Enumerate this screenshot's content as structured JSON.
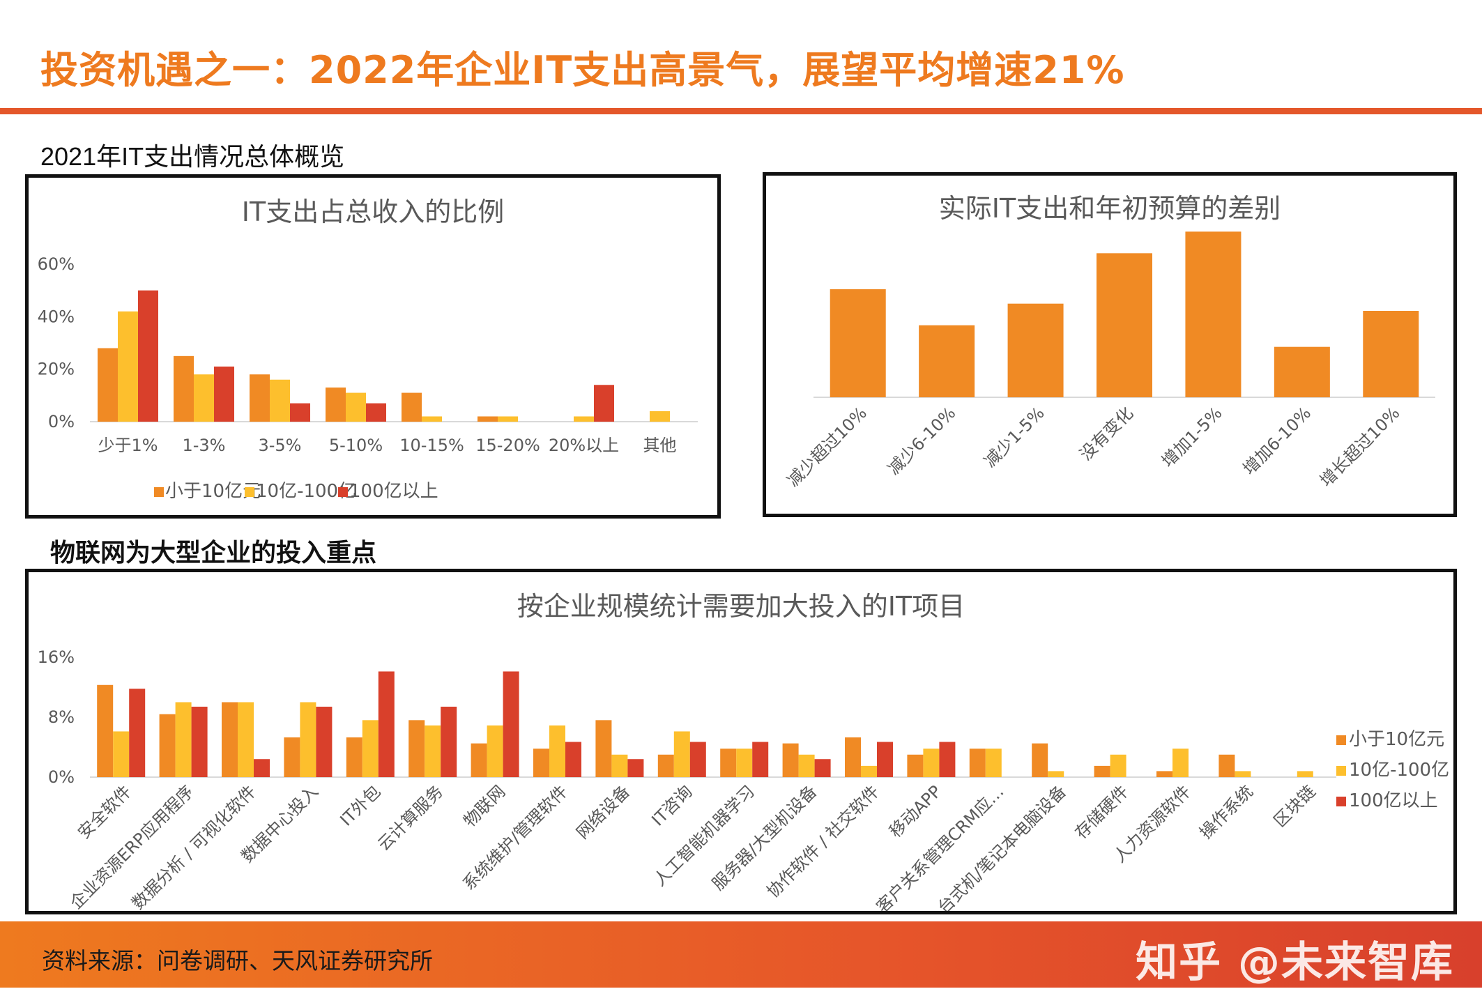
{
  "page": {
    "title": "投资机遇之一：2022年企业IT支出高景气，展望平均增速21%",
    "subtitle_top": "2021年IT支出情况总体概览",
    "subtitle_bottom": "物联网为大型企业的投入重点",
    "source": "资料来源：问卷调研、天风证券研究所",
    "watermark": "知乎 @未来智库"
  },
  "colors": {
    "s1": "#f08a24",
    "s2": "#fdbf2d",
    "s3": "#d9402b",
    "axis": "#d9d9d9",
    "text": "#595959"
  },
  "chart_data": [
    {
      "id": "c1",
      "type": "bar",
      "title": "IT支出占总收入的比例",
      "categories": [
        "少于1%",
        "1-3%",
        "3-5%",
        "5-10%",
        "10-15%",
        "15-20%",
        "20%以上",
        "其他"
      ],
      "ylim": [
        0,
        60
      ],
      "yticks": [
        "0%",
        "20%",
        "40%",
        "60%"
      ],
      "ytick_values": [
        0,
        20,
        40,
        60
      ],
      "legend_position": "bottom",
      "series": [
        {
          "name": "小于10亿元",
          "values": [
            28,
            25,
            18,
            13,
            11,
            2,
            0,
            0
          ]
        },
        {
          "name": "10亿-100亿",
          "values": [
            42,
            18,
            16,
            11,
            2,
            2,
            2,
            4
          ]
        },
        {
          "name": "100亿以上",
          "values": [
            50,
            21,
            7,
            7,
            0,
            0,
            14,
            0
          ]
        }
      ]
    },
    {
      "id": "c2",
      "type": "bar",
      "title": "实际IT支出和年初预算的差别",
      "categories": [
        "减少超过10%",
        "减少6-10%",
        "减少1-5%",
        "没有变化",
        "增加1-5%",
        "增加6-10%",
        "增长超过10%"
      ],
      "ylim": [
        0,
        60
      ],
      "series": [
        {
          "name": "实际IT支出和年初预算的差别",
          "values": [
            30,
            20,
            26,
            40,
            46,
            14,
            24
          ]
        }
      ]
    },
    {
      "id": "c3",
      "type": "bar",
      "title": "按企业规模统计需要加大投入的IT项目",
      "categories": [
        "安全软件",
        "企业资源ERP应用程序",
        "数据分析 / 可视化软件",
        "数据中心投入",
        "IT外包",
        "云计算服务",
        "物联网",
        "系统维护/管理软件",
        "网络设备",
        "IT咨询",
        "人工智能机器学习",
        "服务器/大型机设备",
        "协作软件 / 社交软件",
        "移动APP",
        "客户关系管理CRM应…",
        "台式机/笔记本电脑设备",
        "存储硬件",
        "人力资源软件",
        "操作系统",
        "区块链"
      ],
      "ylim": [
        0,
        16
      ],
      "yticks": [
        "0%",
        "8%",
        "16%"
      ],
      "ytick_values": [
        0,
        8,
        16
      ],
      "legend_position": "right",
      "series": [
        {
          "name": "小于10亿元",
          "values": [
            12.3,
            8.4,
            10.0,
            5.3,
            5.3,
            7.6,
            4.5,
            3.8,
            7.6,
            3.0,
            3.8,
            4.5,
            5.3,
            3.0,
            3.8,
            4.5,
            1.5,
            0.8,
            3.0,
            0
          ]
        },
        {
          "name": "10亿-100亿",
          "values": [
            6.1,
            10.0,
            10.0,
            10.0,
            7.6,
            6.9,
            6.9,
            6.9,
            3.0,
            6.1,
            3.8,
            3.0,
            1.5,
            3.8,
            3.8,
            0.8,
            3.0,
            3.8,
            0.8,
            0.8
          ]
        },
        {
          "name": "100亿以上",
          "values": [
            11.8,
            9.4,
            2.4,
            9.4,
            14.1,
            9.4,
            14.1,
            4.7,
            2.4,
            4.7,
            4.7,
            2.4,
            4.7,
            4.7,
            0,
            0,
            0,
            0,
            0,
            0
          ]
        }
      ]
    }
  ]
}
